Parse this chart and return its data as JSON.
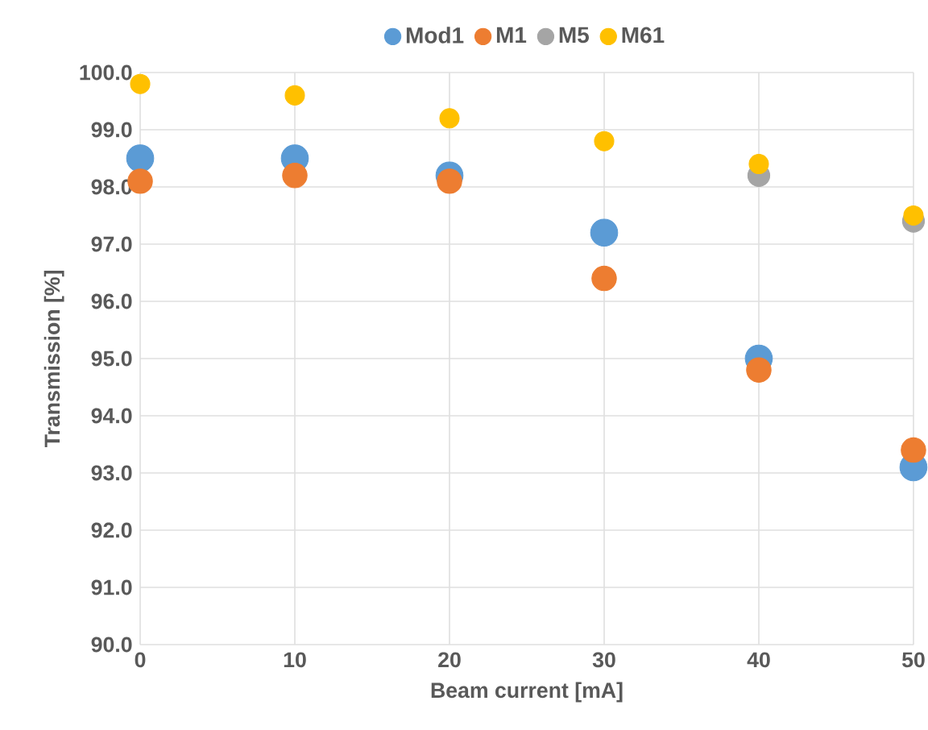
{
  "chart_data": {
    "type": "scatter",
    "xlabel": "Beam current [mA]",
    "ylabel": "Transmission [%]",
    "x": [
      0,
      10,
      20,
      30,
      40,
      50
    ],
    "series": [
      {
        "name": "Mod1",
        "color": "#5b9bd5",
        "values": [
          98.5,
          98.5,
          98.2,
          97.2,
          95.0,
          93.1
        ]
      },
      {
        "name": "M1",
        "color": "#ed7d31",
        "values": [
          98.1,
          98.2,
          98.1,
          96.4,
          94.8,
          93.4
        ]
      },
      {
        "name": "M5",
        "color": "#a5a5a5",
        "values": [
          null,
          null,
          null,
          null,
          98.2,
          97.4
        ]
      },
      {
        "name": "M61",
        "color": "#ffc000",
        "values": [
          99.8,
          99.6,
          99.2,
          98.8,
          98.4,
          97.5
        ]
      }
    ],
    "xlim": [
      0,
      50
    ],
    "xticks": [
      0,
      10,
      20,
      30,
      40,
      50
    ],
    "ylim": [
      90,
      100
    ],
    "yticks": [
      {
        "value": 90,
        "label": "90.0"
      },
      {
        "value": 91,
        "label": "91.0"
      },
      {
        "value": 92,
        "label": "92.0"
      },
      {
        "value": 93,
        "label": "93.0"
      },
      {
        "value": 94,
        "label": "94.0"
      },
      {
        "value": 95,
        "label": "95.0"
      },
      {
        "value": 96,
        "label": "96.0"
      },
      {
        "value": 97,
        "label": "97.0"
      },
      {
        "value": 98,
        "label": "98.0"
      },
      {
        "value": 99,
        "label": "99.0"
      },
      {
        "value": 100,
        "label": "100.0"
      }
    ],
    "grid": true,
    "legend": "top",
    "marker": "circle"
  }
}
